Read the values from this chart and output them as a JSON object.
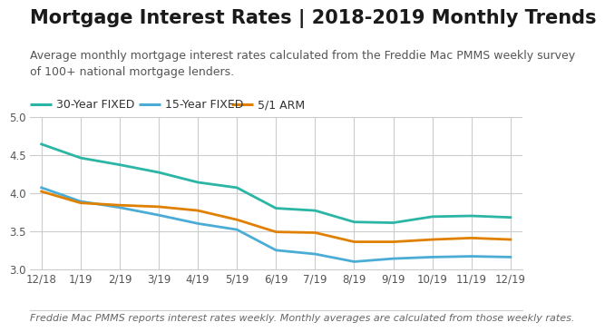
{
  "title": "Mortgage Interest Rates | 2018-2019 Monthly Trends",
  "subtitle": "Average monthly mortgage interest rates calculated from the Freddie Mac PMMS weekly survey\nof 100+ national mortgage lenders.",
  "footnote": "Freddie Mac PMMS reports interest rates weekly. Monthly averages are calculated from those weekly rates.",
  "x_labels": [
    "12/18",
    "1/19",
    "2/19",
    "3/19",
    "4/19",
    "5/19",
    "6/19",
    "7/19",
    "8/19",
    "9/19",
    "10/19",
    "11/19",
    "12/19"
  ],
  "series_30yr": [
    4.64,
    4.46,
    4.37,
    4.27,
    4.14,
    4.07,
    3.8,
    3.77,
    3.62,
    3.61,
    3.69,
    3.7,
    3.68
  ],
  "series_15yr": [
    4.07,
    3.89,
    3.81,
    3.71,
    3.6,
    3.52,
    3.25,
    3.2,
    3.1,
    3.14,
    3.16,
    3.17,
    3.16
  ],
  "series_arm": [
    4.02,
    3.87,
    3.84,
    3.82,
    3.77,
    3.65,
    3.49,
    3.48,
    3.36,
    3.36,
    3.39,
    3.41,
    3.39
  ],
  "color_30yr": "#2ab5a5",
  "color_15yr": "#4bacd6",
  "color_arm": "#e08000",
  "legend_labels": [
    "30-Year FIXED",
    "15-Year FIXED",
    "5/1 ARM"
  ],
  "ylim": [
    3.0,
    5.0
  ],
  "yticks": [
    3.0,
    3.5,
    4.0,
    4.5,
    5.0
  ],
  "background_color": "#ffffff",
  "grid_color": "#cccccc",
  "title_fontsize": 15,
  "subtitle_fontsize": 9,
  "footnote_fontsize": 8,
  "axis_tick_fontsize": 8.5,
  "legend_fontsize": 9,
  "line_width": 2.0
}
